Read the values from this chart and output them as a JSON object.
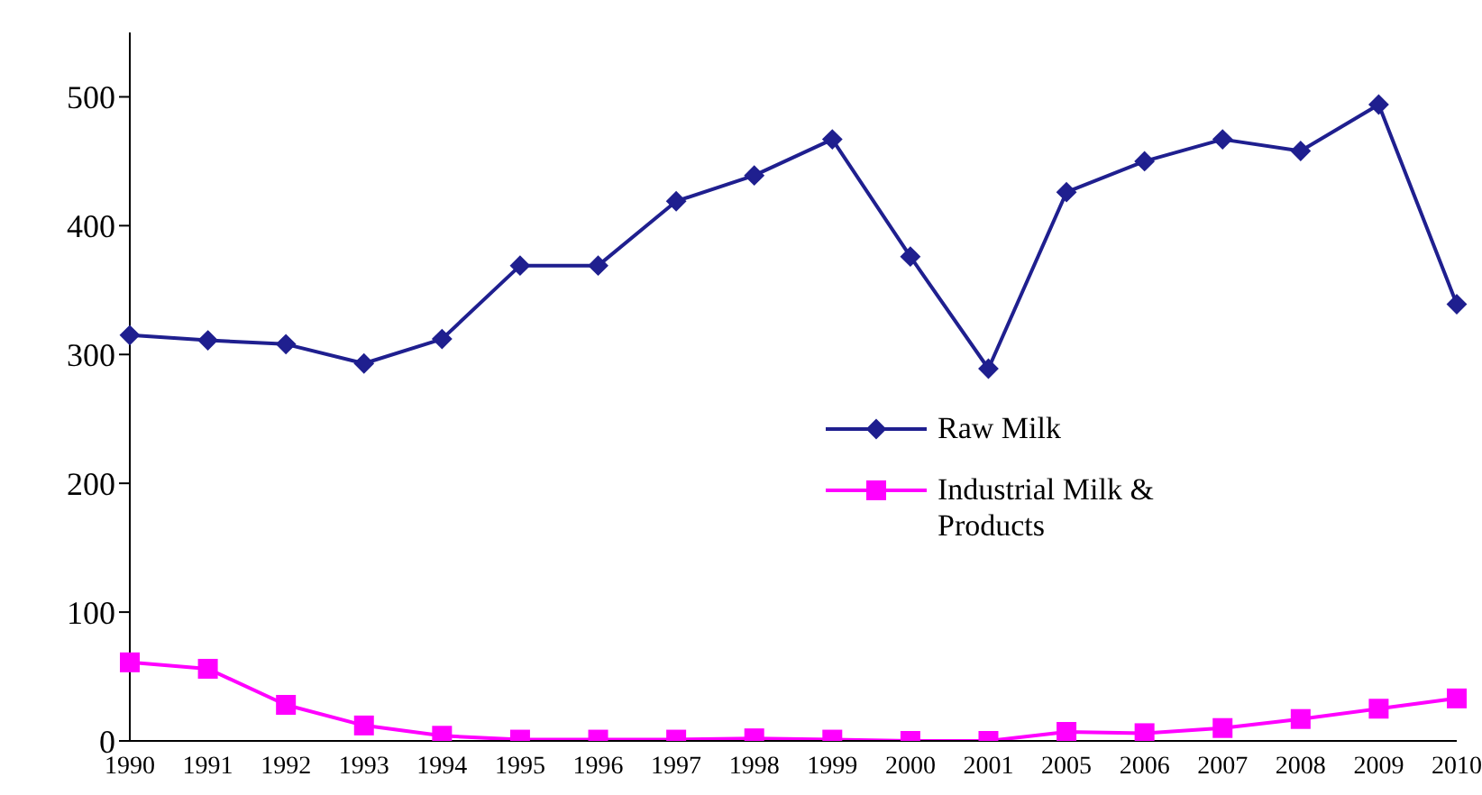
{
  "chart_data": {
    "type": "line",
    "categories": [
      "1990",
      "1991",
      "1992",
      "1993",
      "1994",
      "1995",
      "1996",
      "1997",
      "1998",
      "1999",
      "2000",
      "2001",
      "2005",
      "2006",
      "2007",
      "2008",
      "2009",
      "2010"
    ],
    "series": [
      {
        "name": "Raw Milk",
        "color": "#1f1f8f",
        "marker": "diamond",
        "values": [
          315,
          311,
          308,
          293,
          312,
          369,
          369,
          419,
          439,
          467,
          376,
          289,
          426,
          450,
          467,
          458,
          494,
          339
        ]
      },
      {
        "name": "Industrial Milk & Products",
        "color": "#ff00ff",
        "marker": "square",
        "values": [
          61,
          56,
          28,
          12,
          4,
          1,
          1,
          1,
          2,
          1,
          0,
          0,
          7,
          6,
          10,
          17,
          25,
          33
        ]
      }
    ],
    "ylim": [
      0,
      550
    ],
    "yticks": [
      0,
      100,
      200,
      300,
      400,
      500
    ],
    "grid": false,
    "legend": "right",
    "line_style": "solid"
  }
}
